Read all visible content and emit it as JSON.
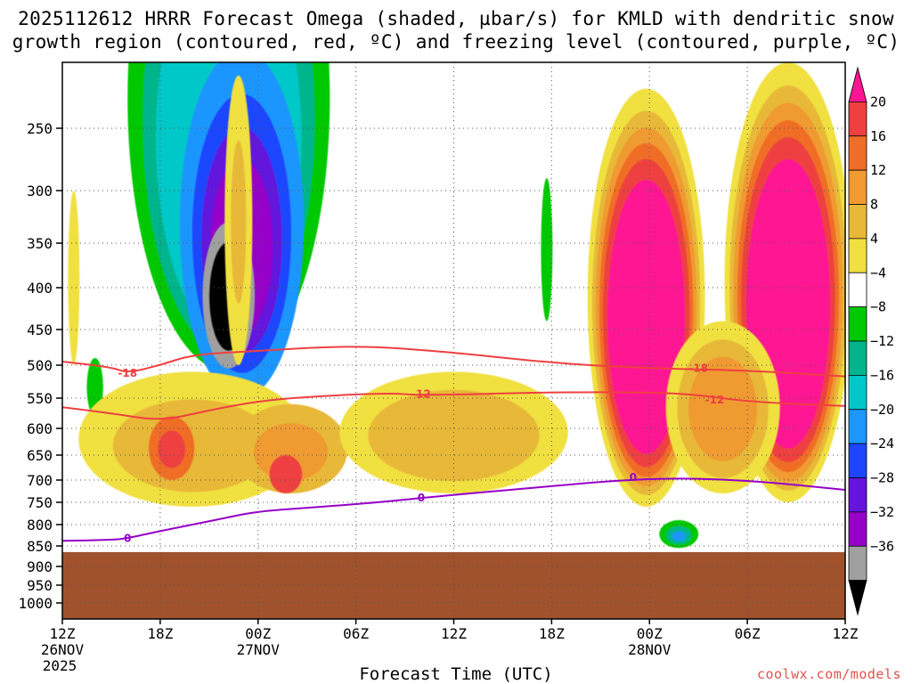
{
  "title": {
    "line1": "2025112612 HRRR Forecast Omega (shaded, µbar/s) for KMLD with dendritic snow",
    "line2": "growth region (contoured, red, ºC) and freezing level (contoured, purple, ºC)"
  },
  "credit": "coolwx.com/models",
  "chart_data": {
    "type": "heatmap",
    "xlabel": "Forecast Time (UTC)",
    "ylabel": "",
    "x_ticks": [
      {
        "hours": 0,
        "label": "12Z",
        "sub1": "26NOV",
        "sub2": "2025"
      },
      {
        "hours": 6,
        "label": "18Z",
        "sub1": "",
        "sub2": ""
      },
      {
        "hours": 12,
        "label": "00Z",
        "sub1": "27NOV",
        "sub2": ""
      },
      {
        "hours": 18,
        "label": "06Z",
        "sub1": "",
        "sub2": ""
      },
      {
        "hours": 24,
        "label": "12Z",
        "sub1": "",
        "sub2": ""
      },
      {
        "hours": 30,
        "label": "18Z",
        "sub1": "",
        "sub2": ""
      },
      {
        "hours": 36,
        "label": "00Z",
        "sub1": "28NOV",
        "sub2": ""
      },
      {
        "hours": 42,
        "label": "06Z",
        "sub1": "",
        "sub2": ""
      },
      {
        "hours": 48,
        "label": "12Z",
        "sub1": "",
        "sub2": ""
      }
    ],
    "xlim": [
      0,
      48
    ],
    "y_ticks": [
      250,
      300,
      350,
      400,
      450,
      500,
      550,
      600,
      650,
      700,
      750,
      800,
      850,
      900,
      950,
      1000
    ],
    "ylim": [
      200,
      1025
    ],
    "ground_level_hpa": 865,
    "colorbar": {
      "levels": [
        20,
        16,
        12,
        8,
        4,
        -4,
        -8,
        -12,
        -16,
        -20,
        -24,
        -28,
        -32,
        -36
      ],
      "labels": [
        "20",
        "16",
        "12",
        "8",
        "4",
        "−4",
        "−8",
        "−12",
        "−16",
        "−20",
        "−24",
        "−28",
        "−32",
        "−36"
      ],
      "colors": [
        "#ff1493",
        "#ee4040",
        "#f06d28",
        "#f09a30",
        "#e8b838",
        "#f0e040",
        "#ffffff",
        "#00c800",
        "#00b48c",
        "#00c8c8",
        "#1e96ff",
        "#1e46ff",
        "#6414dc",
        "#9600c8",
        "#a0a0a0",
        "#000000"
      ]
    },
    "shading_colors": {
      "pos4": "#f0e040",
      "pos8": "#e8b838",
      "pos12": "#f09a30",
      "pos16": "#f06d28",
      "pos20": "#ee4040",
      "pos_max": "#ff1493",
      "neg4": "#00c800",
      "neg8": "#00b48c",
      "neg12": "#00c8c8",
      "neg16": "#1e96ff",
      "neg20": "#1e46ff",
      "neg24": "#6414dc",
      "neg28": "#9600c8",
      "neg32": "#a0a0a0",
      "neg36": "#000000",
      "ground": "#a0522d"
    },
    "contours": [
      {
        "label": "-18",
        "color": "#ee4040",
        "points": [
          [
            0,
            495
          ],
          [
            3,
            503
          ],
          [
            4,
            512
          ],
          [
            6,
            500
          ],
          [
            8,
            485
          ],
          [
            12,
            480
          ],
          [
            18,
            472
          ],
          [
            24,
            482
          ],
          [
            30,
            497
          ],
          [
            36,
            505
          ],
          [
            42,
            508
          ],
          [
            48,
            517
          ]
        ],
        "labels_at": [
          [
            4,
            512
          ],
          [
            39,
            505
          ]
        ]
      },
      {
        "label": "-12",
        "color": "#ee4040",
        "points": [
          [
            0,
            565
          ],
          [
            3,
            575
          ],
          [
            6,
            588
          ],
          [
            9,
            570
          ],
          [
            12,
            555
          ],
          [
            15,
            548
          ],
          [
            20,
            542
          ],
          [
            22,
            546
          ],
          [
            30,
            541
          ],
          [
            36,
            541
          ],
          [
            39,
            545
          ],
          [
            42,
            556
          ],
          [
            48,
            563
          ]
        ],
        "labels_at": [
          [
            22,
            544
          ],
          [
            40,
            553
          ]
        ]
      },
      {
        "label": "0",
        "color": "#9600c8",
        "points": [
          [
            0,
            838
          ],
          [
            3,
            836
          ],
          [
            4,
            832
          ],
          [
            6,
            815
          ],
          [
            8,
            800
          ],
          [
            10,
            785
          ],
          [
            12,
            770
          ],
          [
            16,
            760
          ],
          [
            20,
            748
          ],
          [
            22,
            740
          ],
          [
            28,
            720
          ],
          [
            36,
            695
          ],
          [
            42,
            700
          ],
          [
            48,
            722
          ]
        ],
        "labels_at": [
          [
            4,
            832
          ],
          [
            22,
            740
          ],
          [
            35,
            695
          ]
        ]
      }
    ]
  }
}
